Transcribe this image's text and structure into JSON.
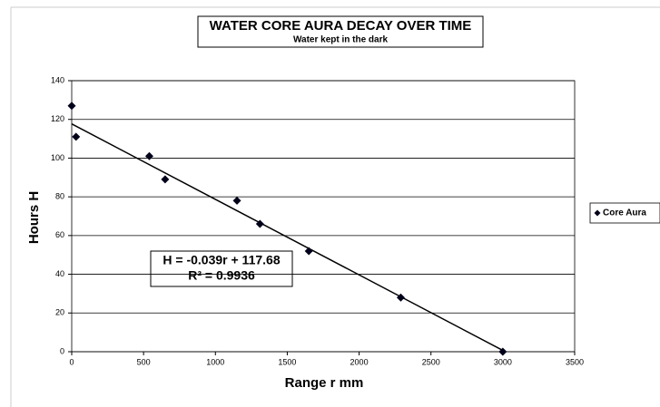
{
  "chart_data": {
    "type": "scatter",
    "title": "WATER CORE AURA DECAY OVER TIME",
    "subtitle": "Water kept in the dark",
    "x_label": "Range  r   mm",
    "y_label": "Hours    H",
    "series": [
      {
        "name": "Core Aura",
        "color": "#00001a",
        "x": [
          0,
          30,
          540,
          650,
          1150,
          1310,
          1650,
          2290,
          3000
        ],
        "values": [
          127,
          111,
          101,
          89,
          78,
          66,
          52,
          28,
          0
        ]
      }
    ],
    "trendline": {
      "slope": -0.039,
      "intercept": 117.68,
      "label": "H = -0.039r + 117.68",
      "r2_label": "R² = 0.9936"
    },
    "xlim": [
      0,
      3500
    ],
    "xticks": [
      0,
      500,
      1000,
      1500,
      2000,
      2500,
      3000,
      3500
    ],
    "ylim": [
      0,
      140
    ],
    "yticks": [
      0,
      20,
      40,
      60,
      80,
      100,
      120,
      140
    ],
    "grid": true,
    "legend": "right"
  }
}
